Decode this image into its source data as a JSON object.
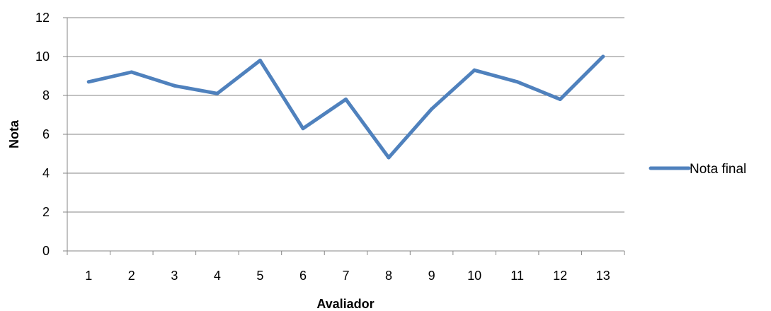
{
  "chart_data": {
    "type": "line",
    "title": "",
    "xlabel": "Avaliador",
    "ylabel": "Nota",
    "categories": [
      "1",
      "2",
      "3",
      "4",
      "5",
      "6",
      "7",
      "8",
      "9",
      "10",
      "11",
      "12",
      "13"
    ],
    "ylim": [
      0,
      12
    ],
    "yticks": [
      0,
      2,
      4,
      6,
      8,
      10,
      12
    ],
    "ytick_labels": [
      "0",
      "2",
      "4",
      "6",
      "8",
      "10",
      "12"
    ],
    "grid": true,
    "legend_position": "right",
    "series": [
      {
        "name": "Nota final",
        "color": "#4F81BD",
        "values": [
          8.7,
          9.2,
          8.5,
          8.1,
          9.8,
          6.3,
          7.8,
          4.8,
          7.3,
          9.3,
          8.7,
          7.8,
          10.0
        ]
      }
    ],
    "colors": {
      "grid": "#868686",
      "axis": "#868686"
    }
  }
}
